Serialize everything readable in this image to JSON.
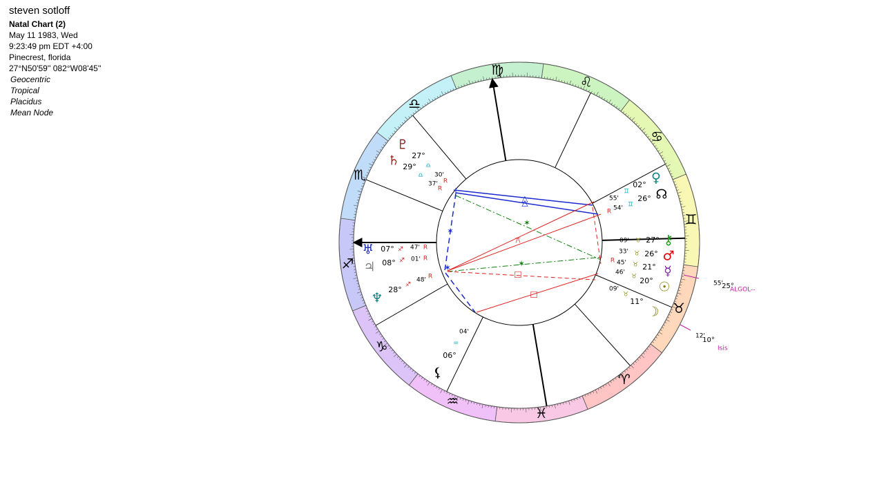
{
  "header": {
    "name": "steven sotloff",
    "chart_kind": "Natal Chart (2)",
    "date": "May 11 1983, Wed",
    "time": "9:23:49 pm  EDT +4:00",
    "place": "Pinecrest, florida",
    "coords": "27°N50'59'' 082°W08'45''",
    "settings": [
      "Geocentric",
      "Tropical",
      "Placidus",
      "Mean Node"
    ]
  },
  "signs": [
    {
      "glyph": "♈",
      "color": "#ffc4c4"
    },
    {
      "glyph": "♉",
      "color": "#ffd8bc"
    },
    {
      "glyph": "♊",
      "color": "#f8f8b4"
    },
    {
      "glyph": "♋",
      "color": "#e4f8b4"
    },
    {
      "glyph": "♌",
      "color": "#ccf4c0"
    },
    {
      "glyph": "♍",
      "color": "#c4f0d0"
    },
    {
      "glyph": "♎",
      "color": "#c4f0f8"
    },
    {
      "glyph": "♏",
      "color": "#c0dcf8"
    },
    {
      "glyph": "♐",
      "color": "#c8c8f8"
    },
    {
      "glyph": "♑",
      "color": "#dcc4f8"
    },
    {
      "glyph": "♒",
      "color": "#f0c0f8"
    },
    {
      "glyph": "♓",
      "color": "#f8c8e4"
    }
  ],
  "planets": [
    {
      "glyph": "♇",
      "color": "#8b1a1a",
      "degree": "27°",
      "sign": "♎",
      "sign_color": "#20b0c8",
      "minute": "30'",
      "retrograde": "R"
    },
    {
      "glyph": "♄",
      "color": "#b22222",
      "degree": "29°",
      "sign": "♎",
      "sign_color": "#20b0c8",
      "minute": "37'",
      "retrograde": "R"
    },
    {
      "glyph": "♅",
      "color": "#1a2ab0",
      "degree": "07°",
      "sign": "♐",
      "sign_color": "#d02020",
      "minute": "47'",
      "retrograde": "R"
    },
    {
      "glyph": "♃",
      "color": "#808080",
      "degree": "08°",
      "sign": "♐",
      "sign_color": "#d02020",
      "minute": "01'",
      "retrograde": "R"
    },
    {
      "glyph": "♆",
      "color": "#108080",
      "degree": "28°",
      "sign": "♐",
      "sign_color": "#d02020",
      "minute": "48'",
      "retrograde": "R"
    },
    {
      "glyph": "⚸",
      "color": "#000000",
      "degree": "06°",
      "sign": "♒",
      "sign_color": "#20b0c8",
      "minute": "04'"
    },
    {
      "glyph": "♀",
      "color": "#108080",
      "degree": "02°",
      "sign": "♊",
      "sign_color": "#20b0c8",
      "minute": "55'"
    },
    {
      "glyph": "☊",
      "color": "#000000",
      "degree": "26°",
      "sign": "♊",
      "sign_color": "#20b0c8",
      "minute": "54'",
      "retrograde": "R"
    },
    {
      "glyph": "⚷",
      "color": "#10a010",
      "degree": "27°",
      "sign": "♉",
      "sign_color": "#909020",
      "minute": "09'"
    },
    {
      "glyph": "♂",
      "color": "#e00000",
      "degree": "26°",
      "sign": "♉",
      "sign_color": "#909020",
      "minute": "33'"
    },
    {
      "glyph": "☿",
      "color": "#8020a0",
      "degree": "21°",
      "sign": "♉",
      "sign_color": "#909020",
      "minute": "45'",
      "retrograde": "R"
    },
    {
      "glyph": "☉",
      "color": "#808000",
      "degree": "20°",
      "sign": "♉",
      "sign_color": "#909020",
      "minute": "46'"
    },
    {
      "glyph": "☽",
      "color": "#808000",
      "degree": "11°",
      "sign": "♉",
      "sign_color": "#909020",
      "minute": "09'"
    }
  ],
  "fixed_stars": [
    {
      "minute": "55'",
      "degree": "25°",
      "name": "ALGOL--"
    },
    {
      "minute": "12'",
      "degree": "10°",
      "name": "Isis"
    }
  ],
  "aspects": [
    {
      "glyph": "△",
      "color": "#1a2ad0"
    },
    {
      "glyph": "△",
      "color": "#1a2ad0"
    },
    {
      "glyph": "✶",
      "color": "#108010"
    },
    {
      "glyph": "⚻",
      "color": "#e02020"
    },
    {
      "glyph": "✶",
      "color": "#1a2ad0"
    },
    {
      "glyph": "✶",
      "color": "#1a2ad0"
    },
    {
      "glyph": "✶",
      "color": "#108010"
    },
    {
      "glyph": "□",
      "color": "#e02020"
    },
    {
      "glyph": "□",
      "color": "#e02020"
    }
  ]
}
